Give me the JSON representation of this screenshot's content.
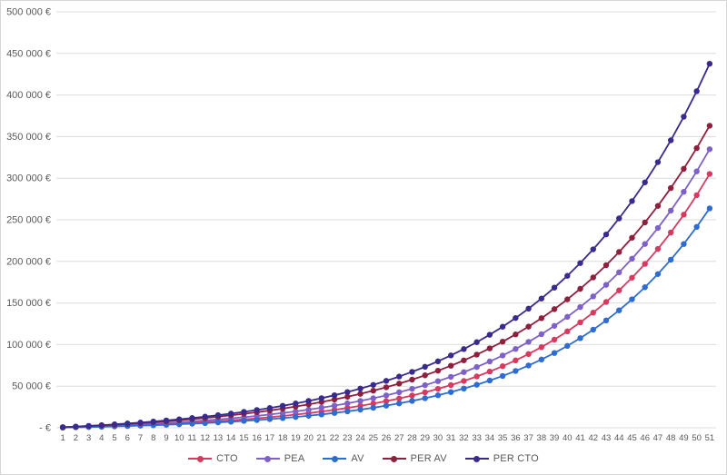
{
  "chart": {
    "background": "#ffffff",
    "border_color": "#d7d7d7",
    "gridline_color": "#dcdcdc",
    "axis_text_color": "#595959",
    "title": ""
  },
  "chart_data": {
    "type": "line",
    "title": "",
    "xlabel": "",
    "ylabel": "",
    "x": [
      1,
      2,
      3,
      4,
      5,
      6,
      7,
      8,
      9,
      10,
      11,
      12,
      13,
      14,
      15,
      16,
      17,
      18,
      19,
      20,
      21,
      22,
      23,
      24,
      25,
      26,
      27,
      28,
      29,
      30,
      31,
      32,
      33,
      34,
      35,
      36,
      37,
      38,
      39,
      40,
      41,
      42,
      43,
      44,
      45,
      46,
      47,
      48,
      49,
      50,
      51
    ],
    "ylim": [
      0,
      500000
    ],
    "ytick_step": 50000,
    "ytick_labels": [
      "- €",
      "50 000 €",
      "100 000 €",
      "150 000 €",
      "200 000 €",
      "250 000 €",
      "300 000 €",
      "350 000 €",
      "400 000 €",
      "450 000 €",
      "500 000 €"
    ],
    "grid": true,
    "legend_position": "bottom",
    "marker": "circle",
    "series": [
      {
        "name": "CTO",
        "color": "#d8395f",
        "values": [
          343,
          717,
          1124,
          1569,
          2053,
          2580,
          3156,
          3783,
          4466,
          5211,
          6023,
          6908,
          7873,
          8925,
          10071,
          11320,
          12682,
          14166,
          15784,
          17548,
          19470,
          21566,
          23849,
          26339,
          29049,
          32010,
          35234,
          38748,
          42578,
          46754,
          51305,
          56265,
          61671,
          67565,
          73989,
          80991,
          88623,
          96942,
          106010,
          115894,
          126667,
          138410,
          151210,
          165162,
          180370,
          196946,
          215014,
          234708,
          256175,
          279573,
          305078
        ]
      },
      {
        "name": "PEA",
        "color": "#7d61c9",
        "values": [
          451,
          940,
          1471,
          2047,
          2672,
          3350,
          4086,
          4885,
          5751,
          6691,
          7710,
          8817,
          10017,
          11320,
          12733,
          14266,
          15930,
          17735,
          19693,
          21818,
          24124,
          26625,
          29339,
          32284,
          35479,
          38946,
          42707,
          46789,
          51216,
          56021,
          61234,
          66890,
          73026,
          79684,
          86909,
          94747,
          103252,
          112479,
          122491,
          133353,
          145139,
          157927,
          171802,
          186856,
          203190,
          220912,
          240140,
          261004,
          283640,
          308200,
          334848
        ]
      },
      {
        "name": "AV",
        "color": "#2e6cd1",
        "values": [
          276,
          577,
          907,
          1266,
          1658,
          2087,
          2555,
          3066,
          3624,
          4233,
          4899,
          5626,
          6419,
          7286,
          8232,
          9265,
          10394,
          11626,
          12972,
          14441,
          16046,
          17798,
          19711,
          21801,
          24082,
          26574,
          29295,
          32266,
          35510,
          39053,
          42922,
          47147,
          51761,
          56799,
          62300,
          68308,
          74868,
          82032,
          89855,
          98398,
          107726,
          117913,
          129037,
          141184,
          154449,
          168934,
          184753,
          202026,
          220876,
          241473,
          263724
        ]
      },
      {
        "name": "PER AV",
        "color": "#8e1f3d",
        "values": [
          628,
          1305,
          2035,
          2821,
          3670,
          4584,
          5569,
          6632,
          7777,
          9011,
          10342,
          11777,
          13324,
          14991,
          16788,
          18726,
          20814,
          23066,
          25493,
          28111,
          30932,
          33973,
          37251,
          40784,
          44593,
          48700,
          53126,
          57898,
          63042,
          68588,
          74566,
          81010,
          87956,
          95445,
          103518,
          112220,
          121601,
          131714,
          142616,
          154368,
          167037,
          180694,
          195415,
          211286,
          228394,
          246837,
          266718,
          288150,
          311270,
          336160,
          363035
        ]
      },
      {
        "name": "PER CTO",
        "color": "#382b8d",
        "values": [
          705,
          1466,
          2289,
          3177,
          4136,
          5172,
          6291,
          7499,
          8804,
          10213,
          11735,
          13379,
          15154,
          17072,
          19142,
          21379,
          23794,
          26402,
          29220,
          32262,
          35548,
          39097,
          42930,
          47069,
          51540,
          56368,
          61582,
          67214,
          73296,
          79865,
          86959,
          94621,
          102895,
          111832,
          121483,
          131907,
          143164,
          155323,
          168453,
          182635,
          197951,
          214492,
          232356,
          251650,
          272486,
          294990,
          319295,
          345543,
          373892,
          404508,
          437573
        ]
      }
    ]
  }
}
